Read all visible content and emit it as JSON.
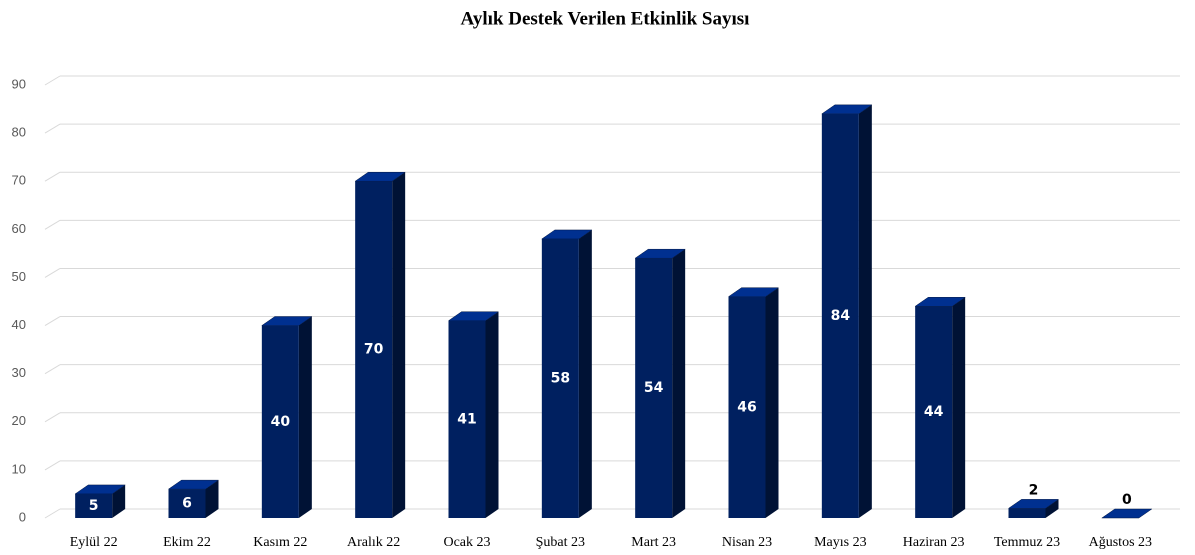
{
  "chart_data": {
    "type": "bar3d",
    "title": "Aylık Destek Verilen Etkinlik Sayısı",
    "categories": [
      "Eylül 22",
      "Ekim 22",
      "Kasım 22",
      "Aralık 22",
      "Ocak 23",
      "Şubat 23",
      "Mart 23",
      "Nisan 23",
      "Mayıs 23",
      "Haziran 23",
      "Temmuz 23",
      "Ağustos 23"
    ],
    "values": [
      5,
      6,
      40,
      70,
      41,
      58,
      54,
      46,
      84,
      44,
      2,
      0
    ],
    "color": "#002060",
    "ylim": [
      0,
      90
    ],
    "yticks": [
      0,
      10,
      20,
      30,
      40,
      50,
      60,
      70,
      80,
      90
    ],
    "grid": true
  }
}
